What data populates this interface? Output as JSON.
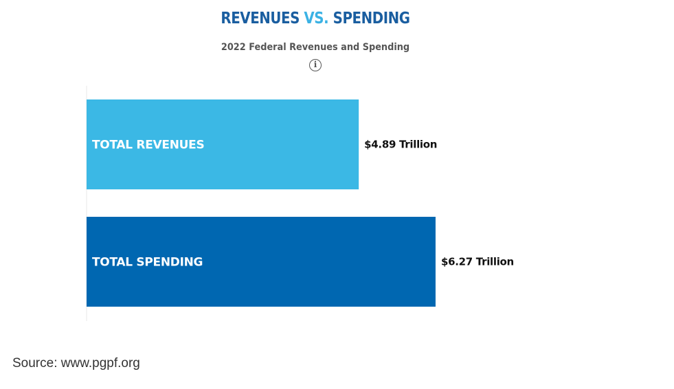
{
  "header": {
    "title_part1": "REVENUES ",
    "title_part2": "VS.",
    "title_part3": " SPENDING",
    "subtitle": "2022 Federal Revenues and Spending",
    "info_icon": "info-icon"
  },
  "colors": {
    "title_dark": "#1a5ea0",
    "title_accent": "#3bb2e4",
    "revenues_bar": "#3bb8e5",
    "spending_bar": "#0067b1",
    "axis": "#e8e8e8"
  },
  "chart_data": {
    "type": "bar",
    "orientation": "horizontal",
    "title": "REVENUES VS. SPENDING",
    "subtitle": "2022 Federal Revenues and Spending",
    "categories": [
      "TOTAL REVENUES",
      "TOTAL SPENDING"
    ],
    "values": [
      4.89,
      6.27
    ],
    "value_labels": [
      "$4.89 Trillion",
      "$6.27 Trillion"
    ],
    "unit": "Trillion",
    "xlim": [
      0,
      7.9
    ],
    "grid": false,
    "legend": "none"
  },
  "source": "Source: www.pgpf.org"
}
